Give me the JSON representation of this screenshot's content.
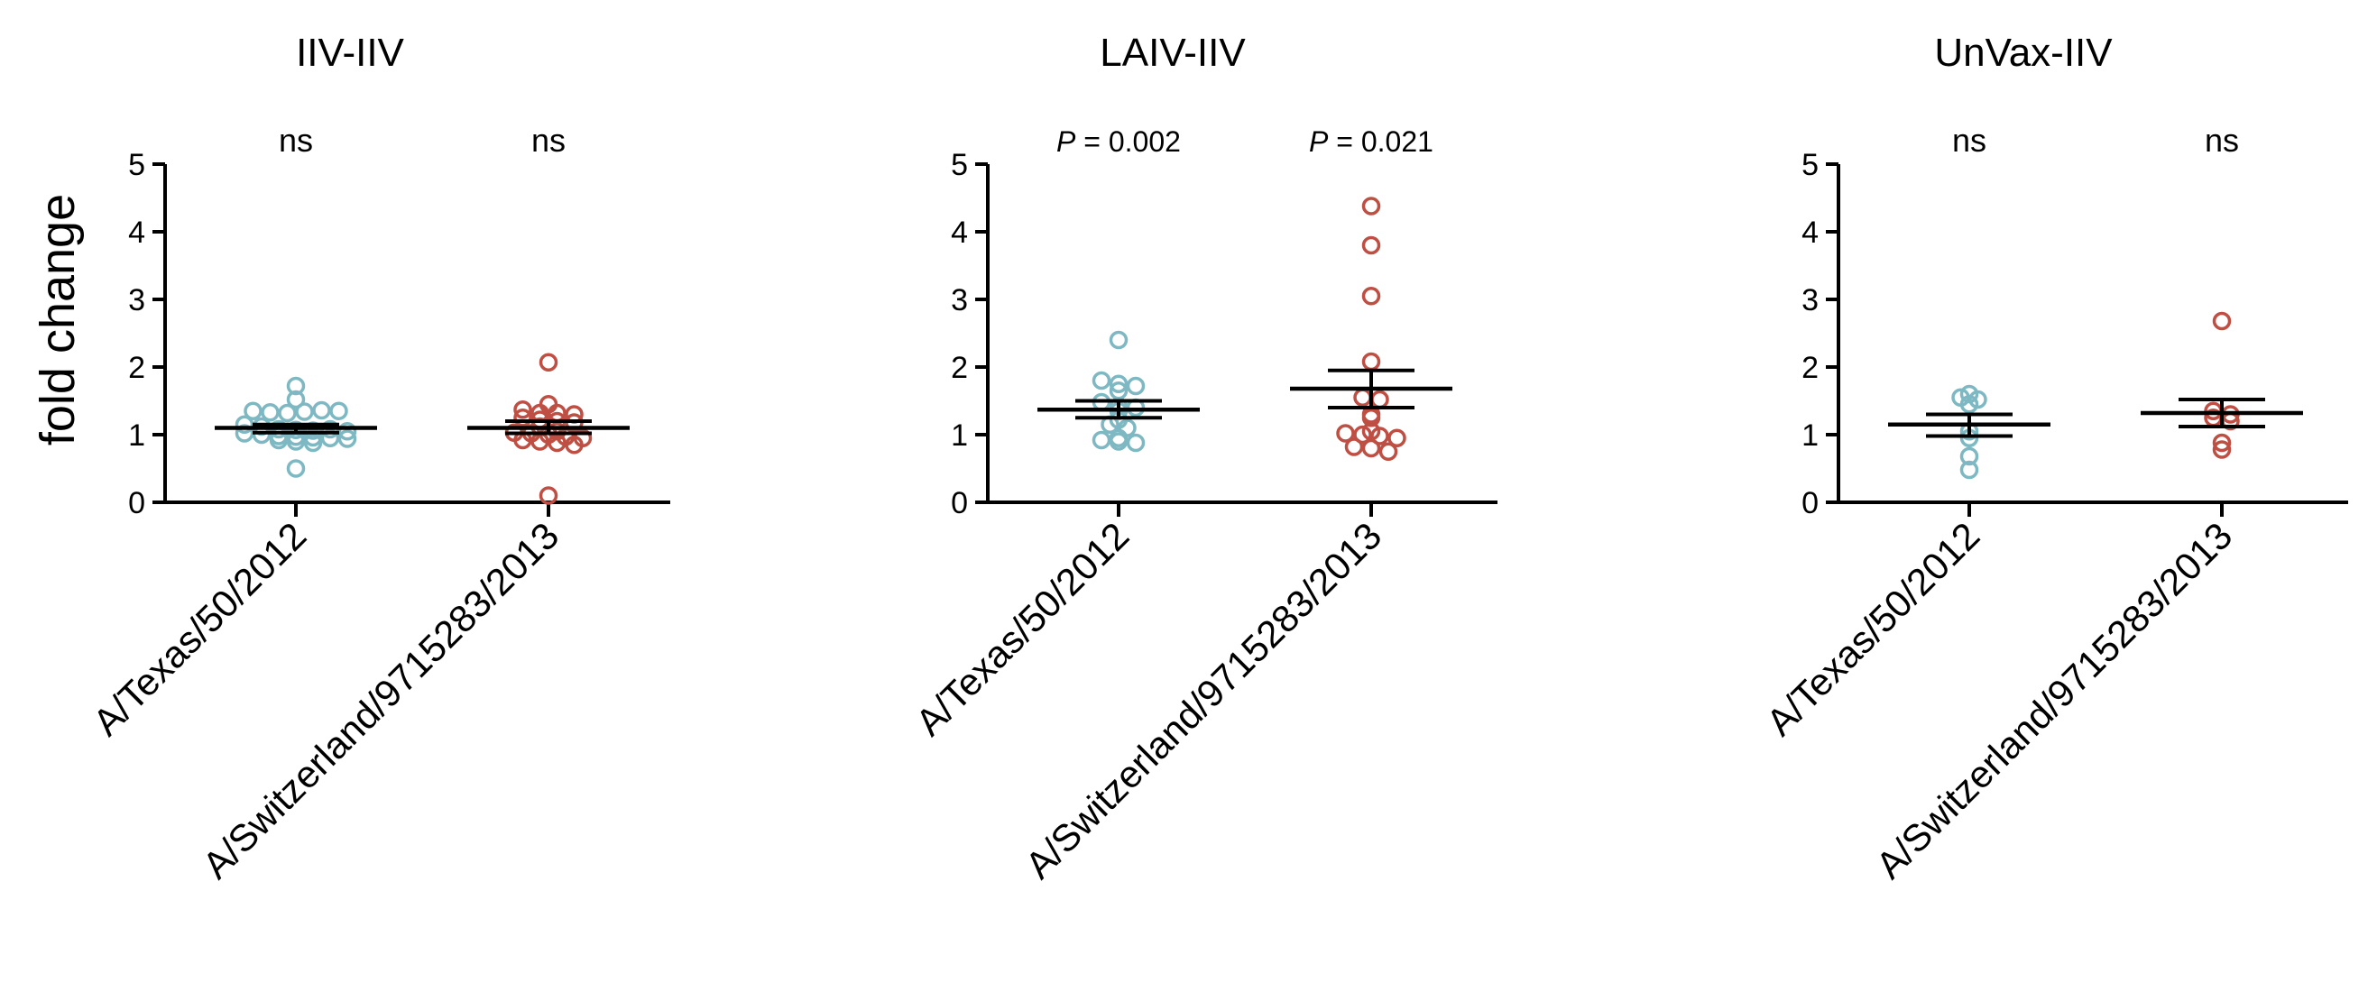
{
  "chart_data": {
    "type": "scatter",
    "ylabel": "fold change",
    "ylim": [
      0,
      5
    ],
    "yticks": [
      "0",
      "1",
      "2",
      "3",
      "4",
      "5"
    ],
    "categories": [
      "A/Texas/50/2012",
      "A/Switzerland/9715283/2013"
    ],
    "colors": {
      "A/Texas/50/2012": "#7db8c3",
      "A/Switzerland/9715283/2013": "#bf4e43",
      "axis": "#000000"
    },
    "grid": false,
    "panels": [
      {
        "title": "IIV-IIV",
        "annotations": [
          {
            "prefix": "",
            "text": "ns"
          },
          {
            "prefix": "",
            "text": "ns"
          }
        ],
        "groups": [
          {
            "category": "A/Texas/50/2012",
            "mean": 1.1,
            "sem_low": 1.03,
            "sem_high": 1.15,
            "values": [
              1.72,
              1.52,
              1.35,
              1.33,
              1.32,
              1.34,
              1.36,
              1.35,
              1.15,
              1.12,
              1.08,
              1.07,
              1.06,
              1.08,
              1.05,
              1.02,
              1.0,
              0.98,
              0.97,
              0.96,
              0.95,
              0.94,
              0.92,
              0.9,
              0.88,
              0.5
            ]
          },
          {
            "category": "A/Switzerland/9715283/2013",
            "mean": 1.1,
            "sem_low": 1.02,
            "sem_high": 1.2,
            "values": [
              2.07,
              1.45,
              1.37,
              1.32,
              1.32,
              1.3,
              1.25,
              1.22,
              1.2,
              1.18,
              1.12,
              1.05,
              1.03,
              1.02,
              1.0,
              0.97,
              0.95,
              0.92,
              0.9,
              0.88,
              0.85,
              0.1
            ]
          }
        ]
      },
      {
        "title": "LAIV-IIV",
        "annotations": [
          {
            "prefix": "P",
            "text": " = 0.002"
          },
          {
            "prefix": "P",
            "text": " = 0.021"
          }
        ],
        "groups": [
          {
            "category": "A/Texas/50/2012",
            "mean": 1.37,
            "sem_low": 1.25,
            "sem_high": 1.5,
            "values": [
              2.4,
              1.8,
              1.75,
              1.72,
              1.65,
              1.48,
              1.42,
              1.4,
              1.35,
              1.22,
              1.15,
              1.1,
              0.95,
              0.92,
              0.9,
              0.88
            ]
          },
          {
            "category": "A/Switzerland/9715283/2013",
            "mean": 1.68,
            "sem_low": 1.4,
            "sem_high": 1.95,
            "values": [
              4.38,
              3.8,
              3.05,
              2.08,
              1.55,
              1.52,
              1.3,
              1.25,
              1.05,
              1.02,
              1.0,
              0.98,
              0.95,
              0.82,
              0.8,
              0.75
            ]
          }
        ]
      },
      {
        "title": "UnVax-IIV",
        "annotations": [
          {
            "prefix": "",
            "text": "ns"
          },
          {
            "prefix": "",
            "text": "ns"
          }
        ],
        "groups": [
          {
            "category": "A/Texas/50/2012",
            "mean": 1.15,
            "sem_low": 0.98,
            "sem_high": 1.3,
            "values": [
              1.6,
              1.55,
              1.52,
              1.45,
              1.05,
              0.95,
              0.68,
              0.48
            ]
          },
          {
            "category": "A/Switzerland/9715283/2013",
            "mean": 1.32,
            "sem_low": 1.12,
            "sem_high": 1.52,
            "values": [
              2.68,
              1.35,
              1.3,
              1.25,
              1.2,
              0.88,
              0.78
            ]
          }
        ]
      }
    ]
  }
}
